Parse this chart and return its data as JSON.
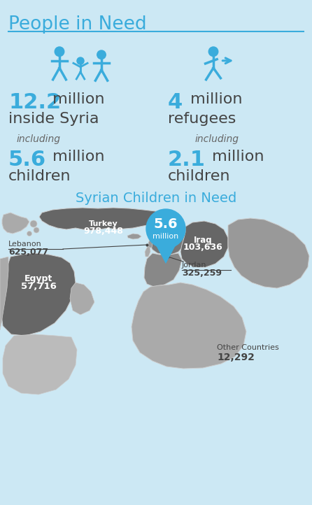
{
  "title": "People in Need",
  "bg_color": "#cce8f4",
  "title_color": "#3aacdc",
  "divider_color": "#3aacdc",
  "number_color": "#3aacdc",
  "dark_text": "#444444",
  "gray_text": "#666666",
  "white": "#ffffff",
  "stat1_num": "12.2",
  "stat1_line1": " million",
  "stat1_line2": "inside Syria",
  "stat1_sub_num": "5.6",
  "stat1_sub_line1": " million",
  "stat1_sub_line2": "children",
  "stat2_num": "4",
  "stat2_line1": " million",
  "stat2_line2": "refugees",
  "stat2_sub_num": "2.1",
  "stat2_sub_line1": " million",
  "stat2_sub_line2": "children",
  "including": "including",
  "map_title": "Syrian Children in Need",
  "map_title_color": "#3aacdc",
  "bubble_color": "#3aacdc",
  "bubble_num": "5.6",
  "bubble_text": "million",
  "turkey_color": "#666666",
  "syria_color": "#777777",
  "iraq_color": "#666666",
  "egypt_color": "#666666",
  "jordan_color": "#888888",
  "iran_color": "#999999",
  "greece_color": "#aaaaaa",
  "saudi_color": "#aaaaaa",
  "libya_color": "#aaaaaa",
  "cyprus_color": "#999999",
  "lebanon_color": "#999999",
  "israel_color": "#aaaaaa",
  "edge_color": "#cccccc"
}
